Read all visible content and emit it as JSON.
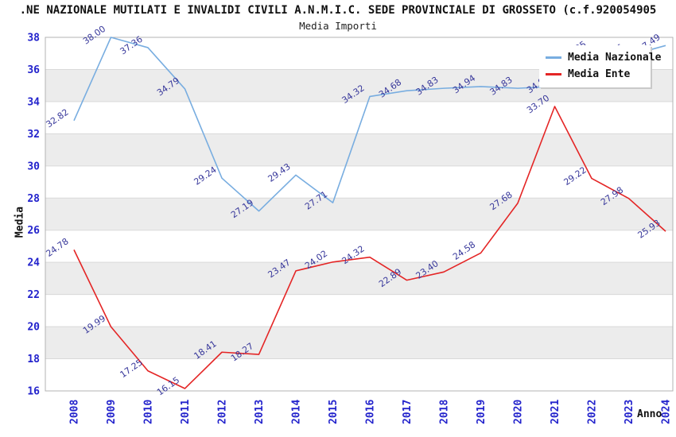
{
  "header": {
    "title": ".NE NAZIONALE MUTILATI E INVALIDI CIVILI A.N.M.I.C. SEDE PROVINCIALE DI GROSSETO (c.f.920054905",
    "subtitle": "Media Importi"
  },
  "axes": {
    "y_label": "Media",
    "x_label": "Anno"
  },
  "legend": {
    "items": [
      {
        "label": "Media Nazionale",
        "color": "#78ade0"
      },
      {
        "label": "Media Ente",
        "color": "#e42525"
      }
    ]
  },
  "chart_data": {
    "type": "line",
    "title": "Media Importi",
    "xlabel": "Anno",
    "ylabel": "Media",
    "categories": [
      "2008",
      "2009",
      "2010",
      "2011",
      "2012",
      "2013",
      "2014",
      "2015",
      "2016",
      "2017",
      "2018",
      "2019",
      "2020",
      "2021",
      "2022",
      "2023",
      "2024"
    ],
    "series": [
      {
        "name": "Media Nazionale",
        "color": "#78ade0",
        "values": [
          32.82,
          38.0,
          37.36,
          34.79,
          29.24,
          27.19,
          29.43,
          27.71,
          34.32,
          34.68,
          34.83,
          34.94,
          34.83,
          34.95,
          37.05,
          36.86,
          37.49
        ]
      },
      {
        "name": "Media Ente",
        "color": "#e42525",
        "values": [
          24.78,
          19.99,
          17.25,
          16.15,
          18.41,
          18.27,
          23.47,
          24.02,
          24.32,
          22.89,
          23.4,
          24.58,
          27.68,
          33.7,
          29.22,
          27.98,
          25.93
        ]
      }
    ],
    "ylim": [
      16,
      38
    ],
    "ytick_step": 2,
    "grid": "horizontal",
    "band_fill": "alternating",
    "legend_position": "top-right"
  },
  "styles": {
    "tick_color": "#2323cc",
    "point_label_color": "#38389b",
    "band_color": "#ececec",
    "grid_color": "#d9d9d9",
    "border_color": "#b3b3b3"
  }
}
